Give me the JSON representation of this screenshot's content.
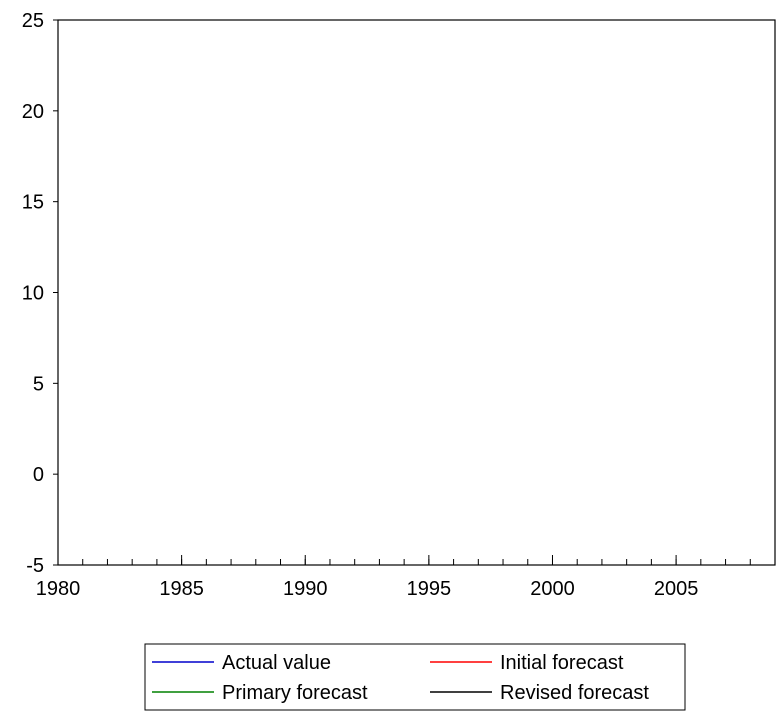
{
  "chart_data": {
    "type": "line",
    "title": "",
    "xlabel": "",
    "ylabel": "",
    "xlim": [
      1980,
      2009
    ],
    "ylim": [
      -5,
      25
    ],
    "x_ticks": [
      1980,
      1985,
      1990,
      1995,
      2000,
      2005
    ],
    "x_tick_labels": [
      "1980",
      "1985",
      "1990",
      "1995",
      "2000",
      "2005"
    ],
    "y_ticks": [
      -5,
      0,
      5,
      10,
      15,
      20,
      25
    ],
    "y_tick_labels": [
      "-5",
      "0",
      "5",
      "10",
      "15",
      "20",
      "25"
    ],
    "grid": false,
    "legend_position": "bottom-center",
    "series": [
      {
        "name": "Actual value",
        "color": "#0000cc",
        "x": [],
        "y": []
      },
      {
        "name": "Initial forecast",
        "color": "#ff0000",
        "x": [],
        "y": []
      },
      {
        "name": "Primary forecast",
        "color": "#008000",
        "x": [],
        "y": []
      },
      {
        "name": "Revised forecast",
        "color": "#000000",
        "x": [],
        "y": []
      }
    ]
  }
}
